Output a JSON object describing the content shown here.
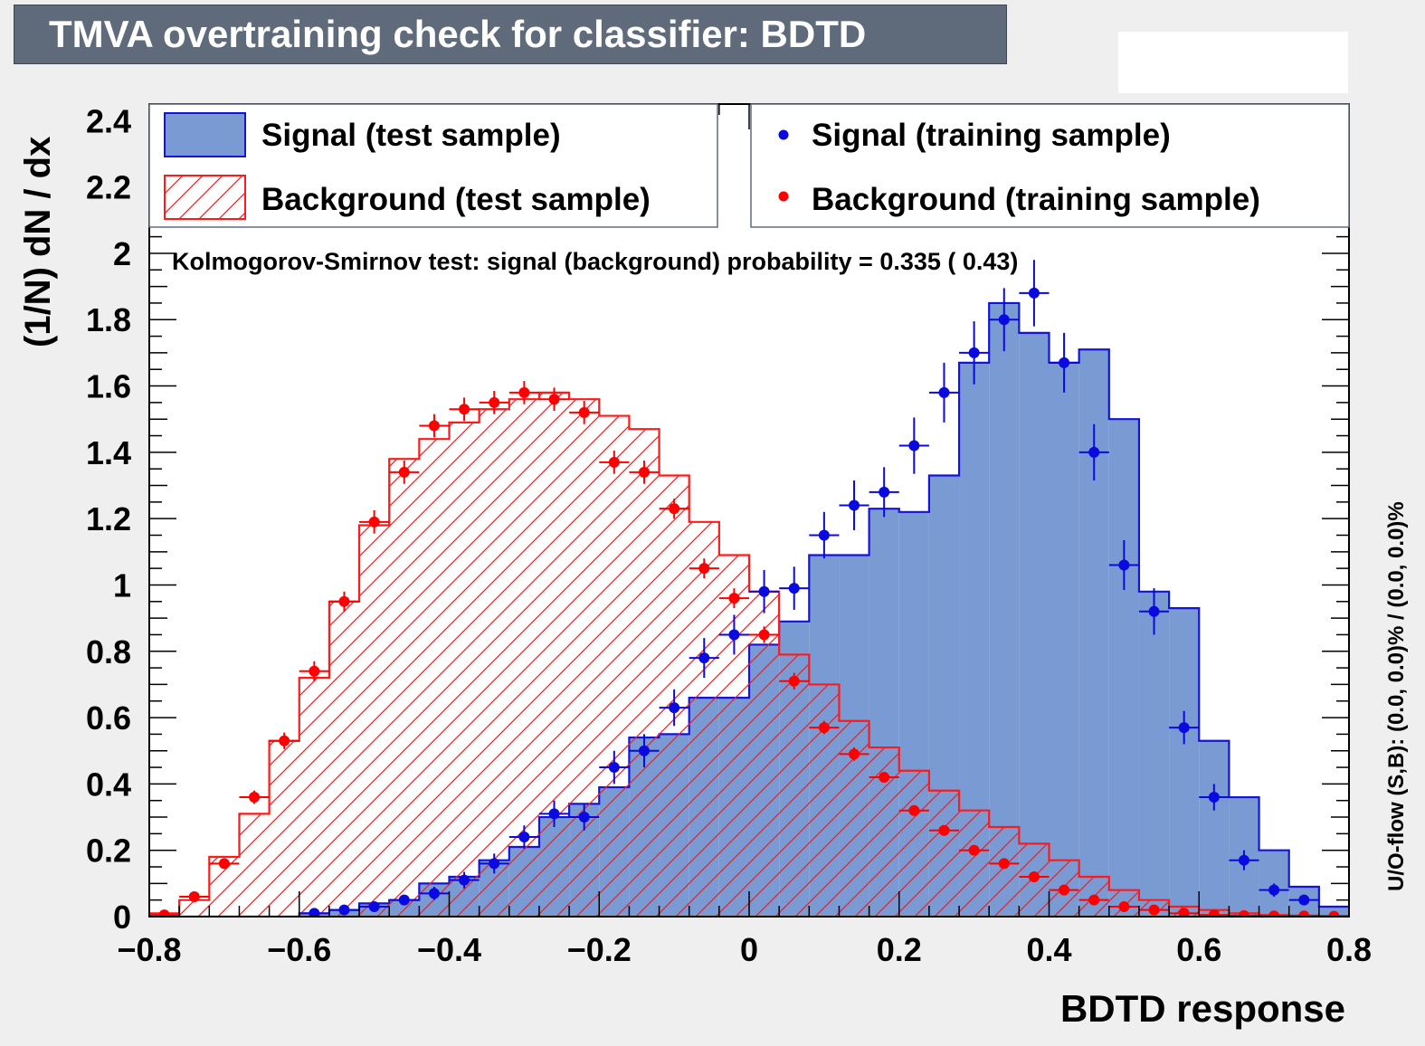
{
  "title": "TMVA overtraining check for classifier: BDTD",
  "colors": {
    "signal_fill": "#7a9ad3",
    "signal_line": "#1414d9",
    "signal_marker": "#0a0ae0",
    "background_line": "#ff1a1a",
    "background_marker": "#ff0000",
    "title_bg": "#5f6b7b",
    "page_bg": "#efefef"
  },
  "legend": {
    "signal_test": "Signal (test sample)",
    "background_test": "Background (test sample)",
    "signal_train": "Signal (training sample)",
    "background_train": "Background (training sample)"
  },
  "ks_text": "Kolmogorov-Smirnov test: signal (background) probability = 0.335 ( 0.43)",
  "overflow_text": "U/O-flow (S,B): (0.0, 0.0)% / (0.0, 0.0)%",
  "chart_data": {
    "type": "bar",
    "xlabel": "BDTD response",
    "ylabel": "(1/N) dN / dx",
    "xlim": [
      -0.8,
      0.8
    ],
    "ylim": [
      0,
      2.45
    ],
    "x_ticks": [
      "−0.8",
      "−0.6",
      "−0.4",
      "−0.2",
      "0",
      "0.2",
      "0.4",
      "0.6",
      "0.8"
    ],
    "y_ticks": [
      "0",
      "0.2",
      "0.4",
      "0.6",
      "0.8",
      "1",
      "1.2",
      "1.4",
      "1.6",
      "1.8",
      "2",
      "2.2",
      "2.4"
    ],
    "bin_edges": [
      -0.8,
      -0.76,
      -0.72,
      -0.68,
      -0.64,
      -0.6,
      -0.56,
      -0.52,
      -0.48,
      -0.44,
      -0.4,
      -0.36,
      -0.32,
      -0.28,
      -0.24,
      -0.2,
      -0.16,
      -0.12,
      -0.08,
      -0.04,
      0.0,
      0.04,
      0.08,
      0.12,
      0.16,
      0.2,
      0.24,
      0.28,
      0.32,
      0.36,
      0.4,
      0.44,
      0.48,
      0.52,
      0.56,
      0.6,
      0.64,
      0.68,
      0.72,
      0.76,
      0.8
    ],
    "series": [
      {
        "name": "Signal (test sample)",
        "kind": "filled-histogram",
        "values": [
          0,
          0,
          0,
          0,
          0,
          0.01,
          0.02,
          0.04,
          0.05,
          0.1,
          0.12,
          0.17,
          0.21,
          0.3,
          0.34,
          0.39,
          0.54,
          0.55,
          0.66,
          0.66,
          0.82,
          0.89,
          1.09,
          1.09,
          1.23,
          1.22,
          1.33,
          1.67,
          1.85,
          1.76,
          1.67,
          1.71,
          1.5,
          0.98,
          0.93,
          0.53,
          0.36,
          0.2,
          0.09,
          0.03
        ]
      },
      {
        "name": "Background (test sample)",
        "kind": "hatched-histogram",
        "values": [
          0.01,
          0.05,
          0.18,
          0.31,
          0.53,
          0.72,
          0.95,
          1.18,
          1.38,
          1.44,
          1.49,
          1.53,
          1.56,
          1.58,
          1.56,
          1.51,
          1.47,
          1.33,
          1.19,
          1.09,
          0.98,
          0.79,
          0.7,
          0.59,
          0.51,
          0.44,
          0.38,
          0.32,
          0.27,
          0.22,
          0.17,
          0.12,
          0.08,
          0.05,
          0.03,
          0.02,
          0.01,
          0.005,
          0.003,
          0.002
        ]
      },
      {
        "name": "Signal (training sample)",
        "kind": "points",
        "x": [
          -0.58,
          -0.54,
          -0.5,
          -0.46,
          -0.42,
          -0.38,
          -0.34,
          -0.3,
          -0.26,
          -0.22,
          -0.18,
          -0.14,
          -0.1,
          -0.06,
          -0.02,
          0.02,
          0.06,
          0.1,
          0.14,
          0.18,
          0.22,
          0.26,
          0.3,
          0.34,
          0.38,
          0.42,
          0.46,
          0.5,
          0.54,
          0.58,
          0.62,
          0.66,
          0.7,
          0.74
        ],
        "values": [
          0.01,
          0.02,
          0.03,
          0.05,
          0.07,
          0.11,
          0.16,
          0.24,
          0.31,
          0.3,
          0.45,
          0.5,
          0.63,
          0.78,
          0.85,
          0.98,
          0.99,
          1.15,
          1.24,
          1.28,
          1.42,
          1.58,
          1.7,
          1.8,
          1.88,
          1.67,
          1.4,
          1.06,
          0.92,
          0.57,
          0.36,
          0.17,
          0.08,
          0.05
        ],
        "errors": [
          0.005,
          0.008,
          0.01,
          0.015,
          0.02,
          0.025,
          0.03,
          0.035,
          0.04,
          0.04,
          0.05,
          0.05,
          0.055,
          0.06,
          0.06,
          0.065,
          0.065,
          0.07,
          0.075,
          0.075,
          0.085,
          0.09,
          0.095,
          0.095,
          0.1,
          0.09,
          0.085,
          0.075,
          0.07,
          0.05,
          0.04,
          0.03,
          0.02,
          0.015
        ]
      },
      {
        "name": "Background (training sample)",
        "kind": "points",
        "x": [
          -0.78,
          -0.74,
          -0.7,
          -0.66,
          -0.62,
          -0.58,
          -0.54,
          -0.5,
          -0.46,
          -0.42,
          -0.38,
          -0.34,
          -0.3,
          -0.26,
          -0.22,
          -0.18,
          -0.14,
          -0.1,
          -0.06,
          -0.02,
          0.02,
          0.06,
          0.1,
          0.14,
          0.18,
          0.22,
          0.26,
          0.3,
          0.34,
          0.38,
          0.42,
          0.46,
          0.5,
          0.54,
          0.58,
          0.62,
          0.66,
          0.7,
          0.74,
          0.78
        ],
        "values": [
          0.005,
          0.06,
          0.16,
          0.36,
          0.53,
          0.74,
          0.95,
          1.19,
          1.34,
          1.48,
          1.53,
          1.55,
          1.58,
          1.56,
          1.52,
          1.37,
          1.34,
          1.23,
          1.05,
          0.96,
          0.85,
          0.71,
          0.57,
          0.49,
          0.42,
          0.32,
          0.26,
          0.2,
          0.16,
          0.12,
          0.08,
          0.05,
          0.03,
          0.02,
          0.01,
          0.005,
          0.003,
          0.002,
          0.002,
          0.001
        ],
        "errors": [
          0.003,
          0.01,
          0.015,
          0.02,
          0.025,
          0.03,
          0.03,
          0.035,
          0.035,
          0.035,
          0.035,
          0.035,
          0.035,
          0.035,
          0.035,
          0.035,
          0.035,
          0.03,
          0.03,
          0.03,
          0.025,
          0.025,
          0.02,
          0.02,
          0.015,
          0.015,
          0.012,
          0.01,
          0.01,
          0.008,
          0.006,
          0.005,
          0.004,
          0.003,
          0.002,
          0.002,
          0.001,
          0.001,
          0.001,
          0.001
        ]
      }
    ],
    "legend_position": "top"
  }
}
